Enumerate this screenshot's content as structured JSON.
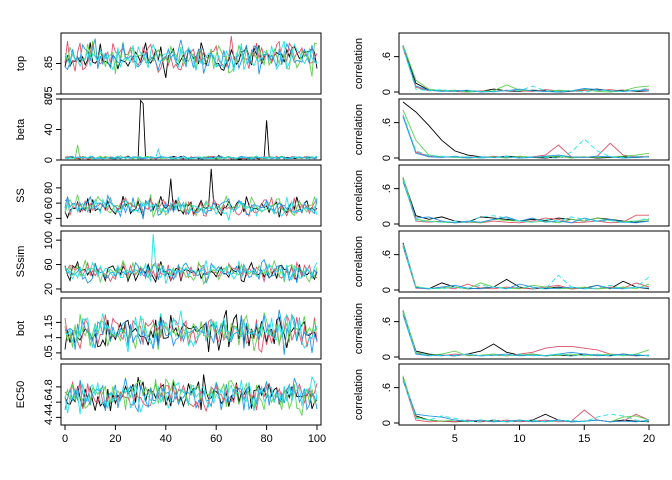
{
  "chart_data": {
    "type": "line",
    "layout": "6 rows x 2 columns of panels (trace plots on left, autocorrelation plots on right)",
    "series_colors": [
      "#000000",
      "#DF536B",
      "#61D04F",
      "#2297E6",
      "#28E2E5"
    ],
    "trace": {
      "x_range": [
        0,
        100
      ],
      "x_ticks": [
        0,
        20,
        40,
        60,
        80,
        100
      ],
      "panels": [
        {
          "ylabel": "top",
          "ylim": [
            0.75,
            0.95
          ],
          "yticks": [
            0.75,
            0.85
          ],
          "center": 0.87,
          "noise": 0.035,
          "spikes": [],
          "seed": 11
        },
        {
          "ylabel": "beta",
          "ylim": [
            0,
            80
          ],
          "yticks": [
            0,
            40,
            80
          ],
          "center": 3,
          "noise": 1.5,
          "spikes": [
            {
              "series": 0,
              "at": 30,
              "height": 78,
              "width": 2
            },
            {
              "series": 0,
              "at": 80,
              "height": 52,
              "width": 1
            },
            {
              "series": 2,
              "at": 5,
              "height": 20,
              "width": 1
            },
            {
              "series": 4,
              "at": 37,
              "height": 14,
              "width": 1
            }
          ],
          "seed": 23
        },
        {
          "ylabel": "SS",
          "ylim": [
            30,
            110
          ],
          "yticks": [
            40,
            60,
            80
          ],
          "center": 55,
          "noise": 9,
          "spikes": [
            {
              "series": 0,
              "at": 58,
              "height": 105,
              "width": 1
            },
            {
              "series": 0,
              "at": 42,
              "height": 92,
              "width": 1
            }
          ],
          "seed": 37
        },
        {
          "ylabel": "SSsim",
          "ylim": [
            15,
            115
          ],
          "yticks": [
            20,
            60,
            100
          ],
          "center": 48,
          "noise": 11,
          "spikes": [
            {
              "series": 4,
              "at": 35,
              "height": 110,
              "width": 1
            }
          ],
          "seed": 41
        },
        {
          "ylabel": "bot",
          "ylim": [
            0.03,
            0.23
          ],
          "yticks": [
            0.05,
            0.1,
            0.15
          ],
          "center": 0.12,
          "noise": 0.04,
          "spikes": [],
          "seed": 53
        },
        {
          "ylabel": "EC50",
          "ylim": [
            4.3,
            5.1
          ],
          "yticks": [
            4.4,
            4.6,
            4.8
          ],
          "center": 4.7,
          "noise": 0.14,
          "spikes": [],
          "seed": 67
        }
      ]
    },
    "autocorrelation": {
      "ylabel": "correlation",
      "x_range": [
        1,
        20
      ],
      "x_ticks": [
        5,
        10,
        15,
        20
      ],
      "ylim": [
        0,
        0.95
      ],
      "yticks": [
        0,
        0.6
      ],
      "panels": [
        {
          "series": [
            [
              0.78,
              0.15,
              0.03,
              0.02,
              0.01,
              0.02,
              0.01,
              0.05,
              0.02,
              0.01,
              0.03,
              0.02,
              0.0,
              0.01,
              0.03,
              0.05,
              0.02,
              0.03,
              0.01,
              0.02
            ],
            [
              0.75,
              0.08,
              0.02,
              0.03,
              0.01,
              0.0,
              0.02,
              0.01,
              0.03,
              0.02,
              0.01,
              0.04,
              0.02,
              0.01,
              0.03,
              0.02,
              0.04,
              0.01,
              0.02,
              0.05
            ],
            [
              0.8,
              0.2,
              0.05,
              0.02,
              0.03,
              0.0,
              0.01,
              0.02,
              0.12,
              0.03,
              0.02,
              0.01,
              0.03,
              0.02,
              0.05,
              0.01,
              0.0,
              0.02,
              0.08,
              0.1
            ],
            [
              0.77,
              0.1,
              0.03,
              0.01,
              0.02,
              0.03,
              0.0,
              0.01,
              0.02,
              0.05,
              0.02,
              0.01,
              0.0,
              0.02,
              0.06,
              0.04,
              0.02,
              0.01,
              0.03,
              0.02
            ],
            [
              0.76,
              0.05,
              0.02,
              0.04,
              0.01,
              0.02,
              0.01,
              0.0,
              0.03,
              0.02,
              0.1,
              0.02,
              0.01,
              0.02,
              0.0,
              0.03,
              0.02,
              0.01,
              0.02,
              0.07
            ]
          ]
        },
        {
          "series": [
            [
              0.95,
              0.78,
              0.55,
              0.3,
              0.12,
              0.05,
              0.02,
              0.01,
              0.03,
              0.02,
              0.01,
              0.0,
              0.02,
              0.01,
              0.02,
              0.0,
              0.01,
              0.02,
              0.01,
              0.02
            ],
            [
              0.72,
              0.1,
              0.03,
              0.02,
              0.01,
              0.02,
              0.0,
              0.03,
              0.01,
              0.02,
              0.02,
              0.05,
              0.22,
              0.02,
              0.01,
              0.03,
              0.25,
              0.05,
              0.02,
              0.03
            ],
            [
              0.82,
              0.3,
              0.05,
              0.02,
              0.01,
              0.0,
              0.01,
              0.02,
              0.0,
              0.03,
              0.01,
              0.02,
              0.03,
              0.0,
              0.02,
              0.01,
              0.02,
              0.03,
              0.05,
              0.08
            ],
            [
              0.7,
              0.08,
              0.02,
              0.01,
              0.03,
              0.0,
              0.02,
              0.01,
              0.02,
              0.0,
              0.01,
              0.03,
              0.05,
              0.02,
              0.01,
              0.03,
              0.02,
              0.0,
              0.01,
              0.02
            ],
            [
              0.74,
              0.12,
              0.04,
              0.03,
              0.01,
              0.02,
              0.0,
              0.01,
              0.03,
              0.0,
              0.02,
              0.01,
              0.0,
              0.1,
              0.32,
              0.12,
              0.02,
              0.01,
              0.03,
              0.02
            ]
          ]
        },
        {
          "series": [
            [
              0.78,
              0.14,
              0.08,
              0.12,
              0.05,
              0.03,
              0.12,
              0.1,
              0.08,
              0.05,
              0.08,
              0.06,
              0.1,
              0.08,
              0.05,
              0.1,
              0.08,
              0.05,
              0.03,
              0.05
            ],
            [
              0.75,
              0.05,
              0.03,
              0.05,
              0.02,
              0.03,
              0.02,
              0.05,
              0.03,
              0.02,
              0.05,
              0.1,
              0.08,
              0.02,
              0.03,
              0.05,
              0.02,
              0.03,
              0.15,
              0.15
            ],
            [
              0.8,
              0.08,
              0.05,
              0.03,
              0.02,
              0.04,
              0.02,
              0.08,
              0.06,
              0.05,
              0.03,
              0.05,
              0.02,
              0.08,
              0.05,
              0.1,
              0.06,
              0.04,
              0.05,
              0.08
            ],
            [
              0.72,
              0.1,
              0.12,
              0.05,
              0.02,
              0.05,
              0.03,
              0.08,
              0.12,
              0.05,
              0.1,
              0.03,
              0.05,
              0.02,
              0.1,
              0.05,
              0.08,
              0.03,
              0.02,
              0.05
            ],
            [
              0.76,
              0.06,
              0.04,
              0.03,
              0.05,
              0.02,
              0.12,
              0.14,
              0.1,
              0.05,
              0.03,
              0.08,
              0.05,
              0.12,
              0.08,
              0.04,
              0.06,
              0.02,
              0.05,
              0.1
            ]
          ]
        },
        {
          "series": [
            [
              0.8,
              0.05,
              0.02,
              0.12,
              0.05,
              0.02,
              0.03,
              0.05,
              0.18,
              0.05,
              0.02,
              0.03,
              0.05,
              0.02,
              0.03,
              0.08,
              0.02,
              0.15,
              0.05,
              0.02
            ],
            [
              0.74,
              0.03,
              0.02,
              0.05,
              0.02,
              0.1,
              0.03,
              0.02,
              0.05,
              0.03,
              0.02,
              0.05,
              0.08,
              0.02,
              0.03,
              0.02,
              0.05,
              0.03,
              0.12,
              0.05
            ],
            [
              0.78,
              0.06,
              0.02,
              0.03,
              0.05,
              0.02,
              0.12,
              0.05,
              0.03,
              0.02,
              0.08,
              0.05,
              0.02,
              0.03,
              0.05,
              0.02,
              0.03,
              0.05,
              0.02,
              0.1
            ],
            [
              0.75,
              0.04,
              0.02,
              0.05,
              0.08,
              0.03,
              0.02,
              0.05,
              0.02,
              0.1,
              0.05,
              0.02,
              0.03,
              0.05,
              0.02,
              0.08,
              0.03,
              0.02,
              0.05,
              0.03
            ],
            [
              0.77,
              0.05,
              0.03,
              0.02,
              0.05,
              0.03,
              0.08,
              0.05,
              0.02,
              0.05,
              0.03,
              0.02,
              0.25,
              0.05,
              0.02,
              0.03,
              0.08,
              0.02,
              0.05,
              0.22
            ]
          ]
        },
        {
          "series": [
            [
              0.78,
              0.1,
              0.05,
              0.03,
              0.02,
              0.05,
              0.1,
              0.22,
              0.08,
              0.03,
              0.05,
              0.02,
              0.03,
              0.02,
              0.05,
              0.03,
              0.02,
              0.05,
              0.03,
              0.02
            ],
            [
              0.74,
              0.06,
              0.03,
              0.02,
              0.05,
              0.03,
              0.02,
              0.03,
              0.02,
              0.05,
              0.08,
              0.15,
              0.18,
              0.18,
              0.15,
              0.12,
              0.05,
              0.03,
              0.02,
              0.03
            ],
            [
              0.8,
              0.08,
              0.03,
              0.05,
              0.1,
              0.02,
              0.03,
              0.05,
              0.02,
              0.03,
              0.05,
              0.02,
              0.03,
              0.05,
              0.02,
              0.03,
              0.05,
              0.02,
              0.05,
              0.12
            ],
            [
              0.72,
              0.05,
              0.02,
              0.03,
              0.02,
              0.05,
              0.02,
              0.03,
              0.05,
              0.02,
              0.03,
              0.02,
              0.05,
              0.08,
              0.05,
              0.02,
              0.03,
              0.05,
              0.02,
              0.03
            ],
            [
              0.76,
              0.07,
              0.03,
              0.02,
              0.03,
              0.05,
              0.02,
              0.03,
              0.02,
              0.05,
              0.02,
              0.03,
              0.05,
              0.02,
              0.03,
              0.05,
              0.02,
              0.03,
              0.05,
              0.02
            ]
          ]
        },
        {
          "series": [
            [
              0.77,
              0.12,
              0.05,
              0.03,
              0.02,
              0.03,
              0.02,
              0.05,
              0.02,
              0.03,
              0.05,
              0.15,
              0.05,
              0.02,
              0.03,
              0.05,
              0.02,
              0.05,
              0.03,
              0.02
            ],
            [
              0.74,
              0.05,
              0.02,
              0.03,
              0.02,
              0.05,
              0.03,
              0.02,
              0.05,
              0.02,
              0.03,
              0.05,
              0.02,
              0.03,
              0.22,
              0.05,
              0.02,
              0.03,
              0.15,
              0.05
            ],
            [
              0.8,
              0.1,
              0.05,
              0.03,
              0.05,
              0.02,
              0.05,
              0.03,
              0.02,
              0.05,
              0.03,
              0.02,
              0.05,
              0.02,
              0.03,
              0.05,
              0.02,
              0.1,
              0.12,
              0.05
            ],
            [
              0.72,
              0.15,
              0.12,
              0.1,
              0.05,
              0.03,
              0.05,
              0.02,
              0.03,
              0.05,
              0.02,
              0.03,
              0.05,
              0.02,
              0.03,
              0.05,
              0.02,
              0.03,
              0.02,
              0.05
            ],
            [
              0.75,
              0.08,
              0.05,
              0.12,
              0.08,
              0.03,
              0.02,
              0.05,
              0.02,
              0.03,
              0.05,
              0.02,
              0.03,
              0.05,
              0.02,
              0.1,
              0.15,
              0.12,
              0.05,
              0.02
            ]
          ]
        }
      ]
    }
  }
}
